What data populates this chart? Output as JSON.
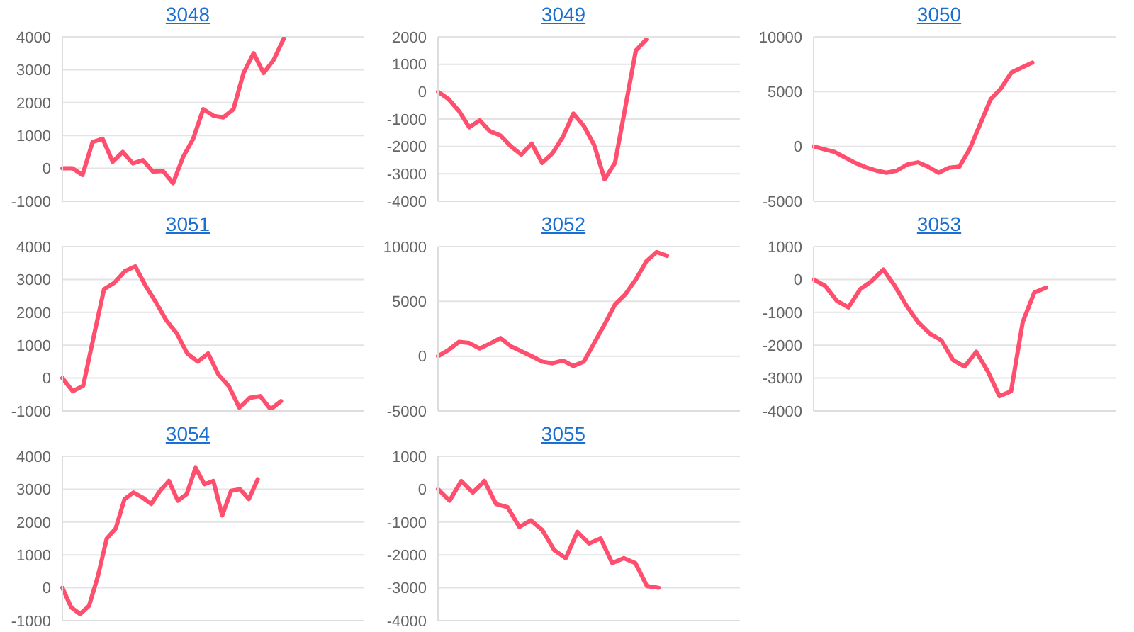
{
  "chart_data": [
    {
      "type": "line",
      "title": "3048",
      "color": "#ff4f6e",
      "grid": "y",
      "tick_labels": "y",
      "ylim": [
        -1000,
        4000
      ],
      "yticks": [
        -1000,
        0,
        1000,
        2000,
        3000,
        4000
      ],
      "categories": [
        null,
        null,
        null,
        null,
        null,
        null,
        null,
        null,
        null,
        null,
        null,
        null,
        null,
        null,
        null,
        null,
        null,
        null,
        null,
        null,
        null,
        null,
        null,
        null,
        null,
        null,
        null,
        null,
        null,
        null,
        null
      ],
      "values": [
        0,
        0,
        -200,
        800,
        900,
        200,
        500,
        150,
        250,
        -100,
        -80,
        -450,
        350,
        900,
        1800,
        1600,
        1550,
        1800,
        2900,
        3500,
        2900,
        3300,
        3950,
        null,
        null,
        null,
        null,
        null,
        null,
        null,
        null
      ]
    },
    {
      "type": "line",
      "title": "3049",
      "color": "#ff4f6e",
      "grid": "y",
      "tick_labels": "y",
      "ylim": [
        -4000,
        2000
      ],
      "yticks": [
        -4000,
        -3000,
        -2000,
        -1000,
        0,
        1000,
        2000
      ],
      "categories": [
        null,
        null,
        null,
        null,
        null,
        null,
        null,
        null,
        null,
        null,
        null,
        null,
        null,
        null,
        null,
        null,
        null,
        null,
        null,
        null,
        null,
        null,
        null,
        null,
        null,
        null,
        null,
        null,
        null,
        null
      ],
      "values": [
        0,
        -270,
        -700,
        -1300,
        -1050,
        -1450,
        -1600,
        -2000,
        -2300,
        -1900,
        -2600,
        -2250,
        -1650,
        -800,
        -1250,
        -1950,
        -3200,
        -2600,
        -550,
        1500,
        1900,
        null,
        null,
        null,
        null,
        null,
        null,
        null,
        null,
        null
      ]
    },
    {
      "type": "line",
      "title": "3050",
      "color": "#ff4f6e",
      "grid": "y",
      "tick_labels": "y",
      "ylim": [
        -5000,
        10000
      ],
      "yticks": [
        -5000,
        0,
        5000,
        10000
      ],
      "categories": [
        null,
        null,
        null,
        null,
        null,
        null,
        null,
        null,
        null,
        null,
        null,
        null,
        null,
        null,
        null,
        null,
        null,
        null,
        null,
        null,
        null,
        null,
        null,
        null,
        null,
        null,
        null,
        null,
        null,
        null
      ],
      "values": [
        0,
        -250,
        -500,
        -1000,
        -1500,
        -1900,
        -2200,
        -2400,
        -2200,
        -1650,
        -1450,
        -1850,
        -2400,
        -1950,
        -1850,
        -200,
        2050,
        4300,
        5300,
        6750,
        7200,
        7650,
        null,
        null,
        null,
        null,
        null,
        null,
        null,
        null
      ]
    },
    {
      "type": "line",
      "title": "3051",
      "color": "#ff4f6e",
      "grid": "y",
      "tick_labels": "y",
      "ylim": [
        -1000,
        4000
      ],
      "yticks": [
        -1000,
        0,
        1000,
        2000,
        3000,
        4000
      ],
      "categories": [
        null,
        null,
        null,
        null,
        null,
        null,
        null,
        null,
        null,
        null,
        null,
        null,
        null,
        null,
        null,
        null,
        null,
        null,
        null,
        null,
        null,
        null,
        null,
        null,
        null,
        null,
        null,
        null,
        null,
        null
      ],
      "values": [
        0,
        -400,
        -230,
        1250,
        2700,
        2900,
        3250,
        3400,
        2800,
        2300,
        1750,
        1350,
        750,
        500,
        750,
        100,
        -250,
        -900,
        -600,
        -550,
        -950,
        -700,
        null,
        null,
        null,
        null,
        null,
        null,
        null,
        null
      ]
    },
    {
      "type": "line",
      "title": "3052",
      "color": "#ff4f6e",
      "grid": "y",
      "tick_labels": "y",
      "ylim": [
        -5000,
        10000
      ],
      "yticks": [
        -5000,
        0,
        5000,
        10000
      ],
      "categories": [
        null,
        null,
        null,
        null,
        null,
        null,
        null,
        null,
        null,
        null,
        null,
        null,
        null,
        null,
        null,
        null,
        null,
        null,
        null,
        null,
        null,
        null,
        null,
        null,
        null,
        null,
        null,
        null,
        null,
        null
      ],
      "values": [
        0,
        550,
        1300,
        1200,
        700,
        1150,
        1650,
        900,
        450,
        0,
        -500,
        -650,
        -400,
        -900,
        -500,
        1200,
        2900,
        4700,
        5650,
        7000,
        8650,
        9500,
        9150,
        null,
        null,
        null,
        null,
        null,
        null,
        null
      ]
    },
    {
      "type": "line",
      "title": "3053",
      "color": "#ff4f6e",
      "grid": "y",
      "tick_labels": "y",
      "ylim": [
        -4000,
        1000
      ],
      "yticks": [
        -4000,
        -3000,
        -2000,
        -1000,
        0,
        1000
      ],
      "categories": [
        null,
        null,
        null,
        null,
        null,
        null,
        null,
        null,
        null,
        null,
        null,
        null,
        null,
        null,
        null,
        null,
        null,
        null,
        null,
        null,
        null,
        null,
        null,
        null,
        null,
        null,
        null
      ],
      "values": [
        0,
        -200,
        -650,
        -850,
        -300,
        -50,
        300,
        -200,
        -800,
        -1300,
        -1650,
        -1850,
        -2450,
        -2650,
        -2200,
        -2800,
        -3550,
        -3400,
        -1300,
        -400,
        -250,
        null,
        null,
        null,
        null,
        null,
        null
      ]
    },
    {
      "type": "line",
      "title": "3054",
      "color": "#ff4f6e",
      "grid": "y",
      "tick_labels": "y",
      "ylim": [
        -1000,
        4000
      ],
      "yticks": [
        -1000,
        0,
        1000,
        2000,
        3000,
        4000
      ],
      "categories": [
        null,
        null,
        null,
        null,
        null,
        null,
        null,
        null,
        null,
        null,
        null,
        null,
        null,
        null,
        null,
        null,
        null,
        null,
        null,
        null,
        null,
        null,
        null,
        null,
        null,
        null,
        null,
        null,
        null,
        null,
        null,
        null,
        null,
        null,
        null
      ],
      "values": [
        0,
        -600,
        -800,
        -550,
        350,
        1500,
        1800,
        2700,
        2900,
        2750,
        2550,
        2950,
        3250,
        2650,
        2850,
        3650,
        3150,
        3250,
        2200,
        2950,
        3000,
        2700,
        3300,
        null,
        null,
        null,
        null,
        null,
        null,
        null,
        null,
        null,
        null,
        null,
        null
      ]
    },
    {
      "type": "line",
      "title": "3055",
      "color": "#ff4f6e",
      "grid": "y",
      "tick_labels": "y",
      "ylim": [
        -4000,
        1000
      ],
      "yticks": [
        -4000,
        -3000,
        -2000,
        -1000,
        0,
        1000
      ],
      "categories": [
        null,
        null,
        null,
        null,
        null,
        null,
        null,
        null,
        null,
        null,
        null,
        null,
        null,
        null,
        null,
        null,
        null,
        null,
        null,
        null,
        null,
        null,
        null,
        null,
        null,
        null,
        null
      ],
      "values": [
        0,
        -350,
        250,
        -100,
        250,
        -450,
        -550,
        -1150,
        -950,
        -1250,
        -1850,
        -2100,
        -1300,
        -1650,
        -1500,
        -2250,
        -2100,
        -2250,
        -2950,
        -3000,
        null,
        null,
        null,
        null,
        null,
        null,
        null
      ]
    }
  ]
}
